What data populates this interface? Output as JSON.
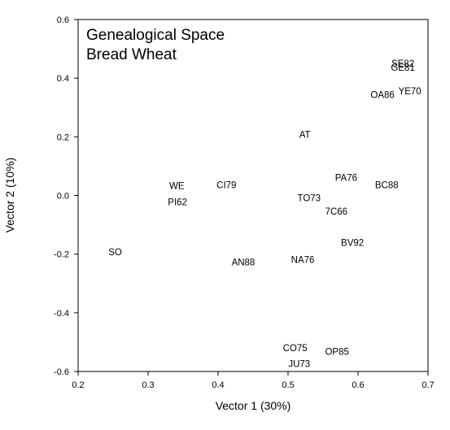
{
  "chart_data": {
    "type": "scatter",
    "title_lines": [
      "Genealogical Space",
      "Bread Wheat"
    ],
    "xlabel": "Vector 1 (30%)",
    "ylabel": "Vector 2 (10%)",
    "xlim": [
      0.2,
      0.7
    ],
    "ylim": [
      -0.6,
      0.6
    ],
    "xticks": [
      "0.2",
      "0.3",
      "0.4",
      "0.5",
      "0.6",
      "0.7"
    ],
    "yticks": [
      "-0.6",
      "-0.4",
      "-0.2",
      "0.0",
      "0.2",
      "0.4",
      "0.6"
    ],
    "grid": false,
    "points": [
      {
        "label": "SE82",
        "x": 0.664,
        "y": 0.45
      },
      {
        "label": "GE81",
        "x": 0.664,
        "y": 0.436
      },
      {
        "label": "YE70",
        "x": 0.674,
        "y": 0.356
      },
      {
        "label": "OA86",
        "x": 0.635,
        "y": 0.343
      },
      {
        "label": "AT",
        "x": 0.524,
        "y": 0.208
      },
      {
        "label": "PA76",
        "x": 0.583,
        "y": 0.061
      },
      {
        "label": "BC88",
        "x": 0.641,
        "y": 0.036
      },
      {
        "label": "WE",
        "x": 0.341,
        "y": 0.033
      },
      {
        "label": "CI79",
        "x": 0.412,
        "y": 0.036
      },
      {
        "label": "TO73",
        "x": 0.53,
        "y": -0.009
      },
      {
        "label": "PI62",
        "x": 0.342,
        "y": -0.022
      },
      {
        "label": "7C66",
        "x": 0.569,
        "y": -0.054
      },
      {
        "label": "BV92",
        "x": 0.592,
        "y": -0.161
      },
      {
        "label": "SO",
        "x": 0.253,
        "y": -0.193
      },
      {
        "label": "NA76",
        "x": 0.521,
        "y": -0.219
      },
      {
        "label": "AN88",
        "x": 0.436,
        "y": -0.227
      },
      {
        "label": "CO75",
        "x": 0.51,
        "y": -0.52
      },
      {
        "label": "OP85",
        "x": 0.57,
        "y": -0.532
      },
      {
        "label": "JU73",
        "x": 0.516,
        "y": -0.574
      }
    ]
  }
}
